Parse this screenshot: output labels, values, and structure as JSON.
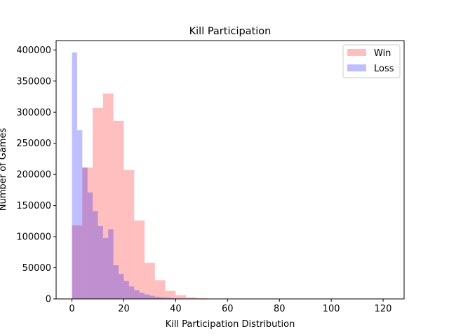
{
  "chart_data": {
    "type": "bar",
    "title": "Kill Participation",
    "xlabel": "Kill Participation Distribution",
    "ylabel": "Number of Games",
    "xlim": [
      -6.1,
      128.1
    ],
    "ylim": [
      0,
      415000
    ],
    "xticks": [
      0,
      20,
      40,
      60,
      80,
      100,
      120
    ],
    "yticks": [
      0,
      50000,
      100000,
      150000,
      200000,
      250000,
      300000,
      350000,
      400000
    ],
    "legend_position": "top-right",
    "grid": false,
    "series": [
      {
        "name": "Win",
        "color": "#ff0000",
        "alpha": 0.25,
        "bin_edges": [
          0,
          4,
          8,
          12,
          16,
          20,
          24,
          28,
          32,
          36,
          40,
          44,
          48,
          52,
          56,
          60,
          64,
          68,
          72,
          76,
          80,
          84,
          88,
          92,
          96,
          100,
          104,
          108,
          112,
          116,
          120,
          122
        ],
        "values": [
          118000,
          211000,
          307000,
          330000,
          286000,
          207000,
          126000,
          58000,
          30000,
          13000,
          6000,
          2500,
          1000,
          500,
          200,
          100,
          50,
          30,
          20,
          10,
          5,
          5,
          5,
          5,
          5,
          5,
          5,
          5,
          5,
          5,
          5
        ]
      },
      {
        "name": "Loss",
        "color": "#0000ff",
        "alpha": 0.25,
        "bin_edges": [
          0,
          2,
          4,
          6,
          8,
          10,
          12,
          14,
          16,
          18,
          20,
          22,
          24,
          26,
          28,
          30,
          32,
          34,
          36,
          38,
          40,
          42,
          44,
          46,
          48,
          50,
          52,
          54
        ],
        "values": [
          396000,
          271000,
          211000,
          171000,
          141000,
          117000,
          98000,
          112000,
          54000,
          40000,
          29000,
          20000,
          14000,
          10000,
          7000,
          5000,
          3500,
          2500,
          1800,
          1200,
          800,
          500,
          300,
          200,
          100,
          50,
          20
        ]
      }
    ]
  }
}
